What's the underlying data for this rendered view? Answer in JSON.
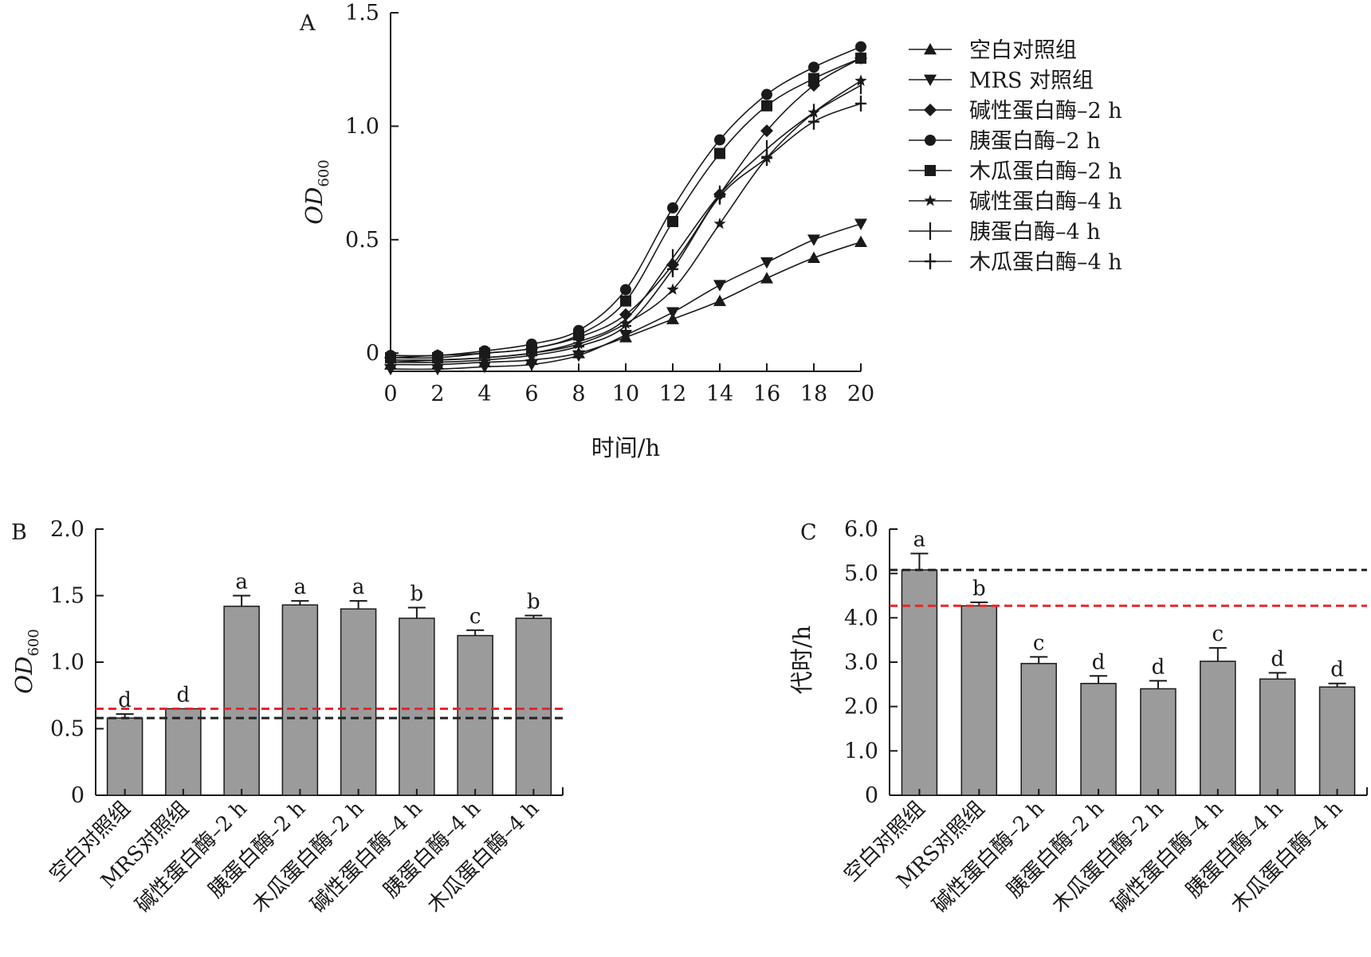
{
  "chart_data": [
    {
      "panel": "A",
      "type": "line",
      "xlabel": "时间/h",
      "ylabel": "OD",
      "ylabel_sub": "600",
      "x": [
        0,
        2,
        4,
        6,
        8,
        10,
        12,
        14,
        16,
        18,
        20
      ],
      "xticks": [
        "0",
        "2",
        "4",
        "6",
        "8",
        "10",
        "12",
        "14",
        "16",
        "18",
        "20"
      ],
      "yticks": [
        {
          "v": 0,
          "label": "0"
        },
        {
          "v": 0.5,
          "label": "0.5"
        },
        {
          "v": 1.0,
          "label": "1.0"
        },
        {
          "v": 1.5,
          "label": "1.5"
        }
      ],
      "xlim": [
        0,
        20
      ],
      "ylim": [
        -0.08,
        1.5
      ],
      "legend_position": "right",
      "series": [
        {
          "name": "空白对照组",
          "marker": "triangle-up",
          "values": [
            -0.05,
            -0.05,
            -0.04,
            -0.03,
            0.0,
            0.07,
            0.15,
            0.23,
            0.33,
            0.42,
            0.49
          ]
        },
        {
          "name": "MRS 对照组",
          "marker": "triangle-down",
          "values": [
            -0.07,
            -0.07,
            -0.06,
            -0.05,
            -0.01,
            0.08,
            0.18,
            0.3,
            0.4,
            0.5,
            0.57
          ]
        },
        {
          "name": "碱性蛋白酶–2 h",
          "marker": "diamond",
          "values": [
            -0.02,
            -0.01,
            0.0,
            0.02,
            0.07,
            0.17,
            0.39,
            0.7,
            0.98,
            1.18,
            1.3
          ]
        },
        {
          "name": "胰蛋白酶–2 h",
          "marker": "circle",
          "values": [
            -0.01,
            -0.01,
            0.01,
            0.04,
            0.1,
            0.28,
            0.64,
            0.94,
            1.14,
            1.26,
            1.35
          ]
        },
        {
          "name": "木瓜蛋白酶–2 h",
          "marker": "square",
          "values": [
            -0.02,
            -0.02,
            0.0,
            0.02,
            0.08,
            0.23,
            0.58,
            0.88,
            1.09,
            1.21,
            1.3
          ]
        },
        {
          "name": "碱性蛋白酶–4 h",
          "marker": "star",
          "values": [
            -0.04,
            -0.03,
            -0.02,
            0.0,
            0.04,
            0.13,
            0.28,
            0.57,
            0.86,
            1.06,
            1.2
          ]
        },
        {
          "name": "胰蛋白酶–4 h",
          "marker": "vbar",
          "values": [
            -0.03,
            -0.03,
            -0.02,
            0.0,
            0.05,
            0.15,
            0.42,
            0.7,
            0.9,
            1.06,
            1.18
          ]
        },
        {
          "name": "木瓜蛋白酶–4 h",
          "marker": "cross",
          "values": [
            -0.04,
            -0.04,
            -0.03,
            -0.01,
            0.03,
            0.12,
            0.37,
            0.69,
            0.86,
            1.02,
            1.1
          ]
        }
      ]
    },
    {
      "panel": "B",
      "type": "bar",
      "ylabel": "OD",
      "ylabel_sub": "600",
      "categories": [
        "空白对照组",
        "MRS对照组",
        "碱性蛋白酶–2 h",
        "胰蛋白酶–2 h",
        "木瓜蛋白酶–2 h",
        "碱性蛋白酶–4 h",
        "胰蛋白酶–4 h",
        "木瓜蛋白酶–4 h"
      ],
      "values": [
        0.58,
        0.65,
        1.42,
        1.43,
        1.4,
        1.33,
        1.2,
        1.33
      ],
      "errors": [
        0.03,
        0.0,
        0.08,
        0.03,
        0.06,
        0.08,
        0.04,
        0.02
      ],
      "letters": [
        "d",
        "d",
        "a",
        "a",
        "a",
        "b",
        "c",
        "b"
      ],
      "yticks": [
        {
          "v": 0,
          "label": "0"
        },
        {
          "v": 0.5,
          "label": "0.5"
        },
        {
          "v": 1.0,
          "label": "1.0"
        },
        {
          "v": 1.5,
          "label": "1.5"
        },
        {
          "v": 2.0,
          "label": "2.0"
        }
      ],
      "ylim": [
        0,
        2.0
      ],
      "reference_lines": [
        {
          "value": 0.65,
          "color": "#e8262b"
        },
        {
          "value": 0.58,
          "color": "#222222"
        }
      ]
    },
    {
      "panel": "C",
      "type": "bar",
      "ylabel": "代时/h",
      "categories": [
        "空白对照组",
        "MRS对照组",
        "碱性蛋白酶–2 h",
        "胰蛋白酶–2 h",
        "木瓜蛋白酶–2 h",
        "碱性蛋白酶–4 h",
        "胰蛋白酶–4 h",
        "木瓜蛋白酶–4 h"
      ],
      "values": [
        5.08,
        4.27,
        2.97,
        2.52,
        2.4,
        3.02,
        2.62,
        2.44
      ],
      "errors": [
        0.37,
        0.08,
        0.15,
        0.17,
        0.18,
        0.3,
        0.14,
        0.08
      ],
      "letters": [
        "a",
        "b",
        "c",
        "d",
        "d",
        "c",
        "d",
        "d"
      ],
      "yticks": [
        {
          "v": 0,
          "label": "0"
        },
        {
          "v": 1.0,
          "label": "1.0"
        },
        {
          "v": 2.0,
          "label": "2.0"
        },
        {
          "v": 3.0,
          "label": "3.0"
        },
        {
          "v": 4.0,
          "label": "4.0"
        },
        {
          "v": 5.0,
          "label": "5.0"
        },
        {
          "v": 6.0,
          "label": "6.0"
        }
      ],
      "ylim": [
        0,
        6.0
      ],
      "reference_lines": [
        {
          "value": 5.08,
          "color": "#222222"
        },
        {
          "value": 4.27,
          "color": "#e8262b"
        }
      ]
    }
  ],
  "colors": {
    "bar_fill": "#9b9b9b",
    "bar_stroke": "#1a1a1a",
    "line": "#1a1a1a",
    "ref_red": "#e8262b",
    "ref_black": "#222222"
  }
}
